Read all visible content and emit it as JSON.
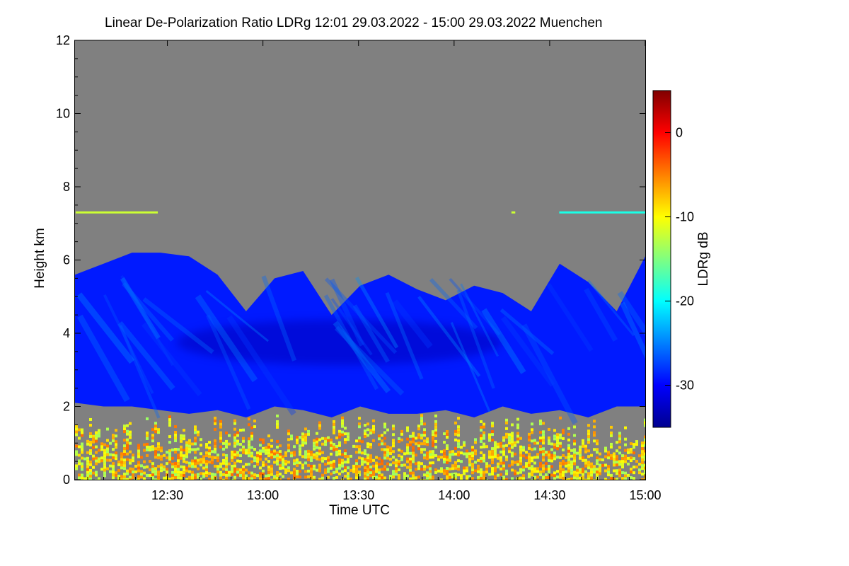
{
  "chart_data": {
    "type": "heatmap",
    "title": "Linear De-Polarization Ratio LDRg   12:01 29.03.2022 - 15:00 29.03.2022 Muenchen",
    "xlabel": "Time UTC",
    "ylabel": "Height km",
    "x_range_hours": [
      12.0167,
      15.0
    ],
    "x_ticks": [
      {
        "value": 12.5,
        "label": "12:30"
      },
      {
        "value": 13.0,
        "label": "13:00"
      },
      {
        "value": 13.5,
        "label": "13:30"
      },
      {
        "value": 14.0,
        "label": "14:00"
      },
      {
        "value": 14.5,
        "label": "14:30"
      },
      {
        "value": 15.0,
        "label": "15:00"
      }
    ],
    "ylim": [
      0,
      12
    ],
    "y_ticks": [
      {
        "value": 0,
        "label": "0"
      },
      {
        "value": 2,
        "label": "2"
      },
      {
        "value": 4,
        "label": "4"
      },
      {
        "value": 6,
        "label": "6"
      },
      {
        "value": 8,
        "label": "8"
      },
      {
        "value": 10,
        "label": "10"
      },
      {
        "value": 12,
        "label": "12"
      }
    ],
    "colorbar": {
      "label": "LDRg dB",
      "range": [
        -35,
        5
      ],
      "ticks": [
        {
          "value": 0,
          "label": "0"
        },
        {
          "value": -10,
          "label": "-10"
        },
        {
          "value": -20,
          "label": "-20"
        },
        {
          "value": -30,
          "label": "-30"
        }
      ],
      "colors": [
        "#00008f",
        "#0000ff",
        "#0080ff",
        "#00ffff",
        "#80ff80",
        "#ffff00",
        "#ff8000",
        "#ff0000",
        "#800000"
      ]
    },
    "nodata_color": "#808080",
    "cloud_top_km": [
      5.6,
      5.9,
      6.2,
      6.2,
      6.1,
      5.6,
      4.6,
      5.5,
      5.7,
      4.5,
      5.3,
      5.6,
      5.2,
      4.9,
      5.3,
      5.1,
      4.6,
      5.9,
      5.4,
      4.6,
      6.1
    ],
    "cloud_base_km": [
      2.1,
      2.0,
      2.0,
      1.9,
      1.8,
      1.9,
      1.7,
      2.0,
      1.9,
      1.7,
      2.0,
      1.8,
      1.8,
      1.9,
      1.7,
      2.0,
      1.8,
      1.9,
      1.7,
      2.0,
      2.0
    ],
    "cloud_ldr_db": -29,
    "boundary_layer_top_km": 1.8,
    "boundary_layer_ldr_db": -9,
    "thin_layer": {
      "height_km": 7.3,
      "ldr_db": -12
    }
  }
}
